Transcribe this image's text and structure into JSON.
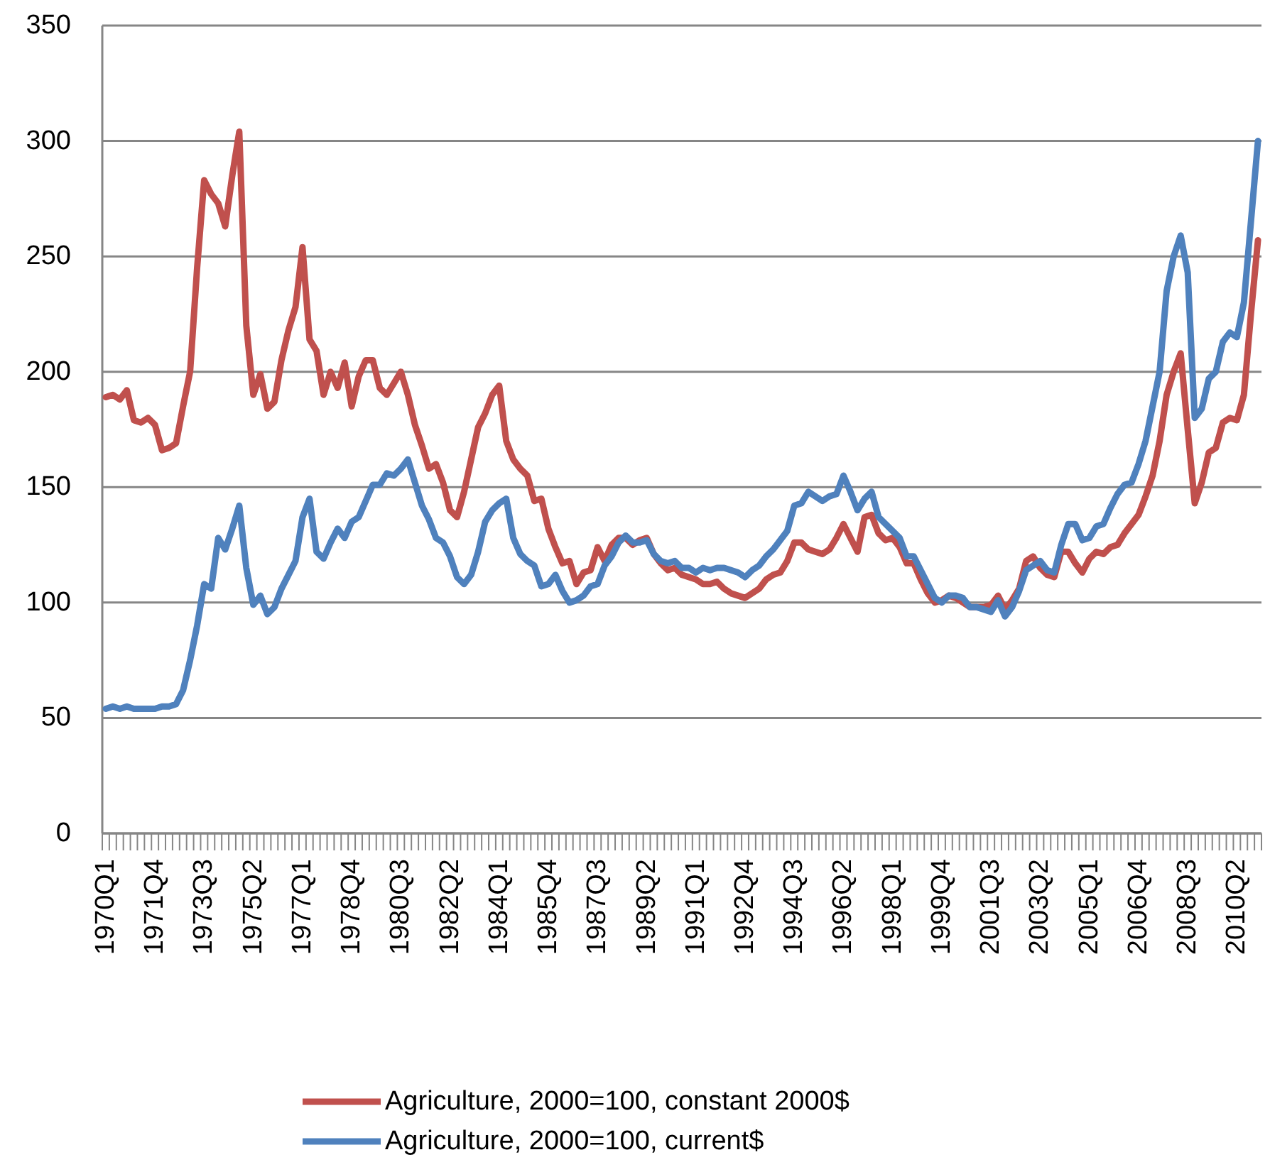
{
  "chart_data": {
    "type": "line",
    "categories": [
      "1970Q1",
      null,
      null,
      null,
      null,
      null,
      null,
      "1971Q4",
      null,
      null,
      null,
      null,
      null,
      null,
      "1973Q3",
      null,
      null,
      null,
      null,
      null,
      null,
      "1975Q2",
      null,
      null,
      null,
      null,
      null,
      null,
      "1977Q1",
      null,
      null,
      null,
      null,
      null,
      null,
      "1978Q4",
      null,
      null,
      null,
      null,
      null,
      null,
      "1980Q3",
      null,
      null,
      null,
      null,
      null,
      null,
      "1982Q2",
      null,
      null,
      null,
      null,
      null,
      null,
      "1984Q1",
      null,
      null,
      null,
      null,
      null,
      null,
      "1985Q4",
      null,
      null,
      null,
      null,
      null,
      null,
      "1987Q3",
      null,
      null,
      null,
      null,
      null,
      null,
      "1989Q2",
      null,
      null,
      null,
      null,
      null,
      null,
      "1991Q1",
      null,
      null,
      null,
      null,
      null,
      null,
      "1992Q4",
      null,
      null,
      null,
      null,
      null,
      null,
      "1994Q3",
      null,
      null,
      null,
      null,
      null,
      null,
      "1996Q2",
      null,
      null,
      null,
      null,
      null,
      null,
      "1998Q1",
      null,
      null,
      null,
      null,
      null,
      null,
      "1999Q4",
      null,
      null,
      null,
      null,
      null,
      null,
      "2001Q3",
      null,
      null,
      null,
      null,
      null,
      null,
      "2003Q2",
      null,
      null,
      null,
      null,
      null,
      null,
      "2005Q1",
      null,
      null,
      null,
      null,
      null,
      null,
      "2006Q4",
      null,
      null,
      null,
      null,
      null,
      null,
      "2008Q3",
      null,
      null,
      null,
      null,
      null,
      null,
      "2010Q2",
      null,
      null,
      null
    ],
    "series": [
      {
        "name": "Agriculture, 2000=100, constant 2000$",
        "color": "#c0504d",
        "values": [
          189,
          190,
          188,
          192,
          179,
          178,
          180,
          177,
          166,
          167,
          169,
          185,
          200,
          245,
          283,
          277,
          273,
          263,
          285,
          304,
          220,
          190,
          199,
          184,
          187,
          205,
          218,
          228,
          254,
          214,
          209,
          190,
          200,
          193,
          204,
          185,
          198,
          205,
          205,
          193,
          190,
          195,
          200,
          190,
          177,
          168,
          158,
          160,
          152,
          140,
          137,
          148,
          162,
          176,
          182,
          190,
          194,
          170,
          162,
          158,
          155,
          144,
          145,
          132,
          124,
          117,
          118,
          108,
          113,
          114,
          124,
          118,
          125,
          128,
          128,
          125,
          127,
          128,
          121,
          117,
          114,
          115,
          112,
          111,
          110,
          108,
          108,
          109,
          106,
          104,
          103,
          102,
          104,
          106,
          110,
          112,
          113,
          118,
          126,
          126,
          123,
          122,
          121,
          123,
          128,
          134,
          128,
          122,
          137,
          138,
          130,
          127,
          128,
          124,
          117,
          117,
          110,
          104,
          100,
          101,
          103,
          102,
          100,
          98,
          98,
          98,
          99,
          103,
          97,
          101,
          106,
          118,
          120,
          115,
          112,
          111,
          122,
          122,
          117,
          113,
          119,
          122,
          121,
          124,
          125,
          130,
          134,
          138,
          146,
          155,
          170,
          190,
          200,
          208,
          175,
          143,
          152,
          165,
          167,
          178,
          180,
          179,
          190,
          225,
          257
        ]
      },
      {
        "name": "Agriculture, 2000=100, current$",
        "color": "#4f81bd",
        "values": [
          54,
          55,
          54,
          55,
          54,
          54,
          54,
          54,
          55,
          55,
          56,
          62,
          75,
          90,
          108,
          106,
          128,
          123,
          132,
          142,
          115,
          99,
          103,
          95,
          98,
          106,
          112,
          118,
          137,
          145,
          122,
          119,
          126,
          132,
          128,
          135,
          137,
          144,
          151,
          151,
          156,
          155,
          158,
          162,
          152,
          142,
          136,
          128,
          126,
          120,
          111,
          108,
          112,
          122,
          135,
          140,
          143,
          145,
          128,
          121,
          118,
          116,
          107,
          108,
          112,
          105,
          100,
          101,
          103,
          107,
          108,
          116,
          120,
          126,
          129,
          126,
          126,
          127,
          121,
          118,
          117,
          118,
          115,
          115,
          113,
          115,
          114,
          115,
          115,
          114,
          113,
          111,
          114,
          116,
          120,
          123,
          127,
          131,
          142,
          143,
          148,
          146,
          144,
          146,
          147,
          155,
          148,
          140,
          145,
          148,
          137,
          134,
          131,
          128,
          120,
          120,
          114,
          108,
          102,
          100,
          103,
          103,
          102,
          98,
          98,
          97,
          96,
          101,
          94,
          98,
          105,
          114,
          116,
          118,
          114,
          113,
          125,
          134,
          134,
          127,
          128,
          133,
          134,
          141,
          147,
          151,
          152,
          160,
          170,
          185,
          200,
          235,
          250,
          259,
          243,
          180,
          184,
          197,
          200,
          213,
          217,
          215,
          230,
          265,
          300
        ]
      }
    ],
    "ylim": [
      0,
      350
    ],
    "yticks": [
      0,
      50,
      100,
      150,
      200,
      250,
      300,
      350
    ],
    "grid": "y",
    "legend": "bottom",
    "marker": "none",
    "line_style": "solid"
  }
}
